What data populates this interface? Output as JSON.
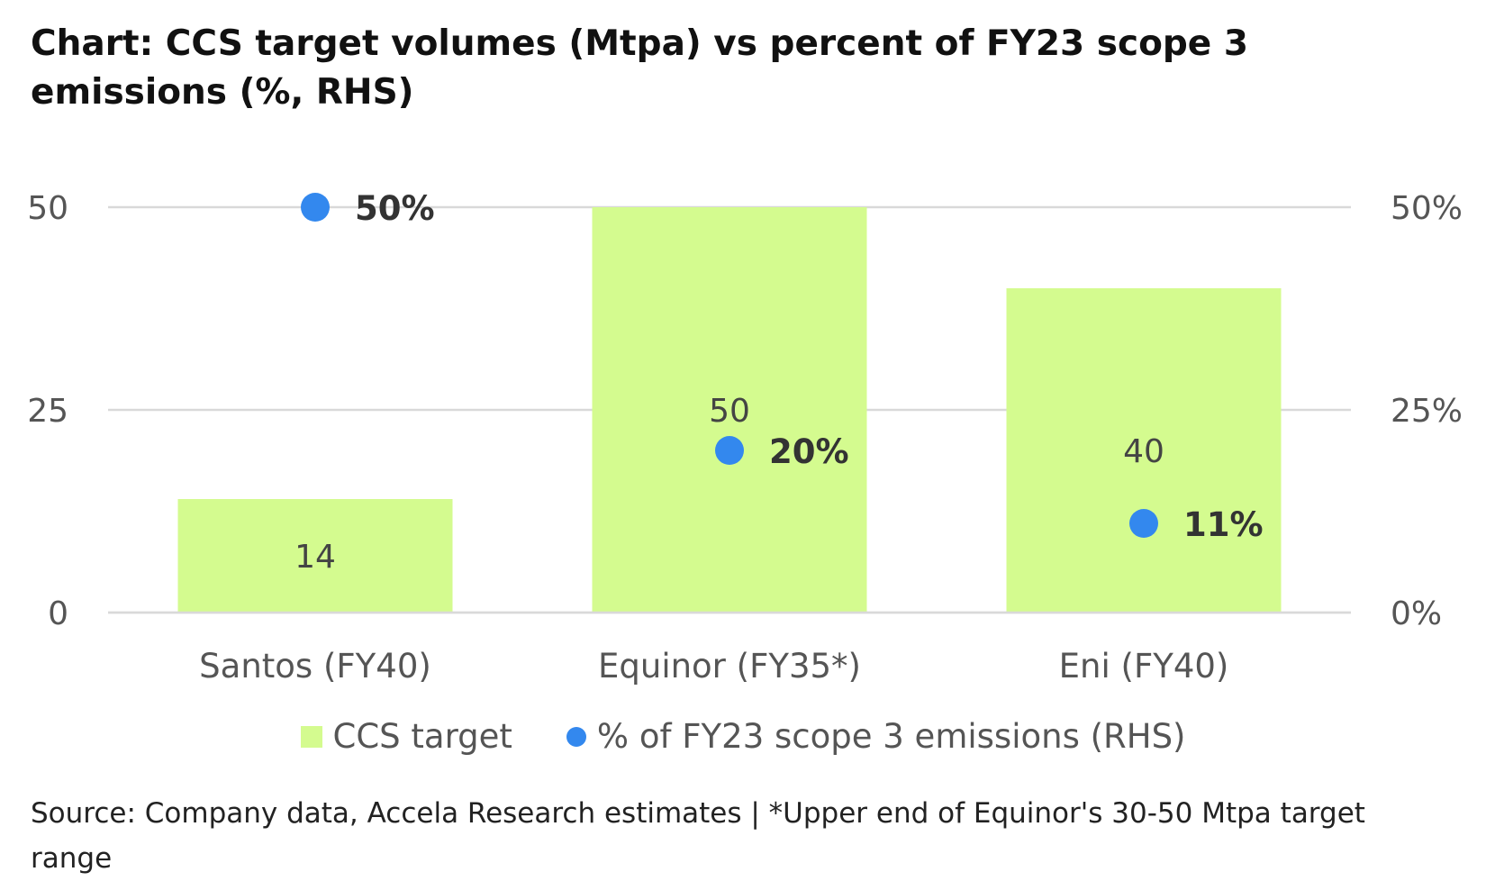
{
  "title": "Chart: CCS target volumes (Mtpa) vs percent of FY23 scope 3 emissions (%, RHS)",
  "source": "Source: Company data, Accela Research estimates | *Upper end of Equinor's 30-50 Mtpa target range",
  "colors": {
    "bar": "#d4fb8f",
    "dot": "#3388ee",
    "grid": "#d9d9d9",
    "axis_text": "#555555"
  },
  "chart_data": {
    "type": "bar",
    "categories": [
      "Santos (FY40)",
      "Equinor (FY35*)",
      "Eni (FY40)"
    ],
    "series": [
      {
        "name": "CCS target",
        "kind": "bar",
        "axis": "left",
        "values": [
          14,
          50,
          40
        ],
        "labels": [
          "14",
          "50",
          "40"
        ]
      },
      {
        "name": "% of FY23 scope 3 emissions (RHS)",
        "kind": "scatter",
        "axis": "right",
        "values": [
          50,
          20,
          11
        ],
        "labels": [
          "50%",
          "20%",
          "11%"
        ]
      }
    ],
    "y_left": {
      "ylim": [
        0,
        50
      ],
      "ticks": [
        0,
        25,
        50
      ],
      "tick_labels": [
        "0",
        "25",
        "50"
      ]
    },
    "y_right": {
      "ylim": [
        0,
        50
      ],
      "ticks": [
        0,
        25,
        50
      ],
      "tick_labels": [
        "0%",
        "25%",
        "50%"
      ]
    },
    "grid": true,
    "legend": "bottom-center"
  }
}
